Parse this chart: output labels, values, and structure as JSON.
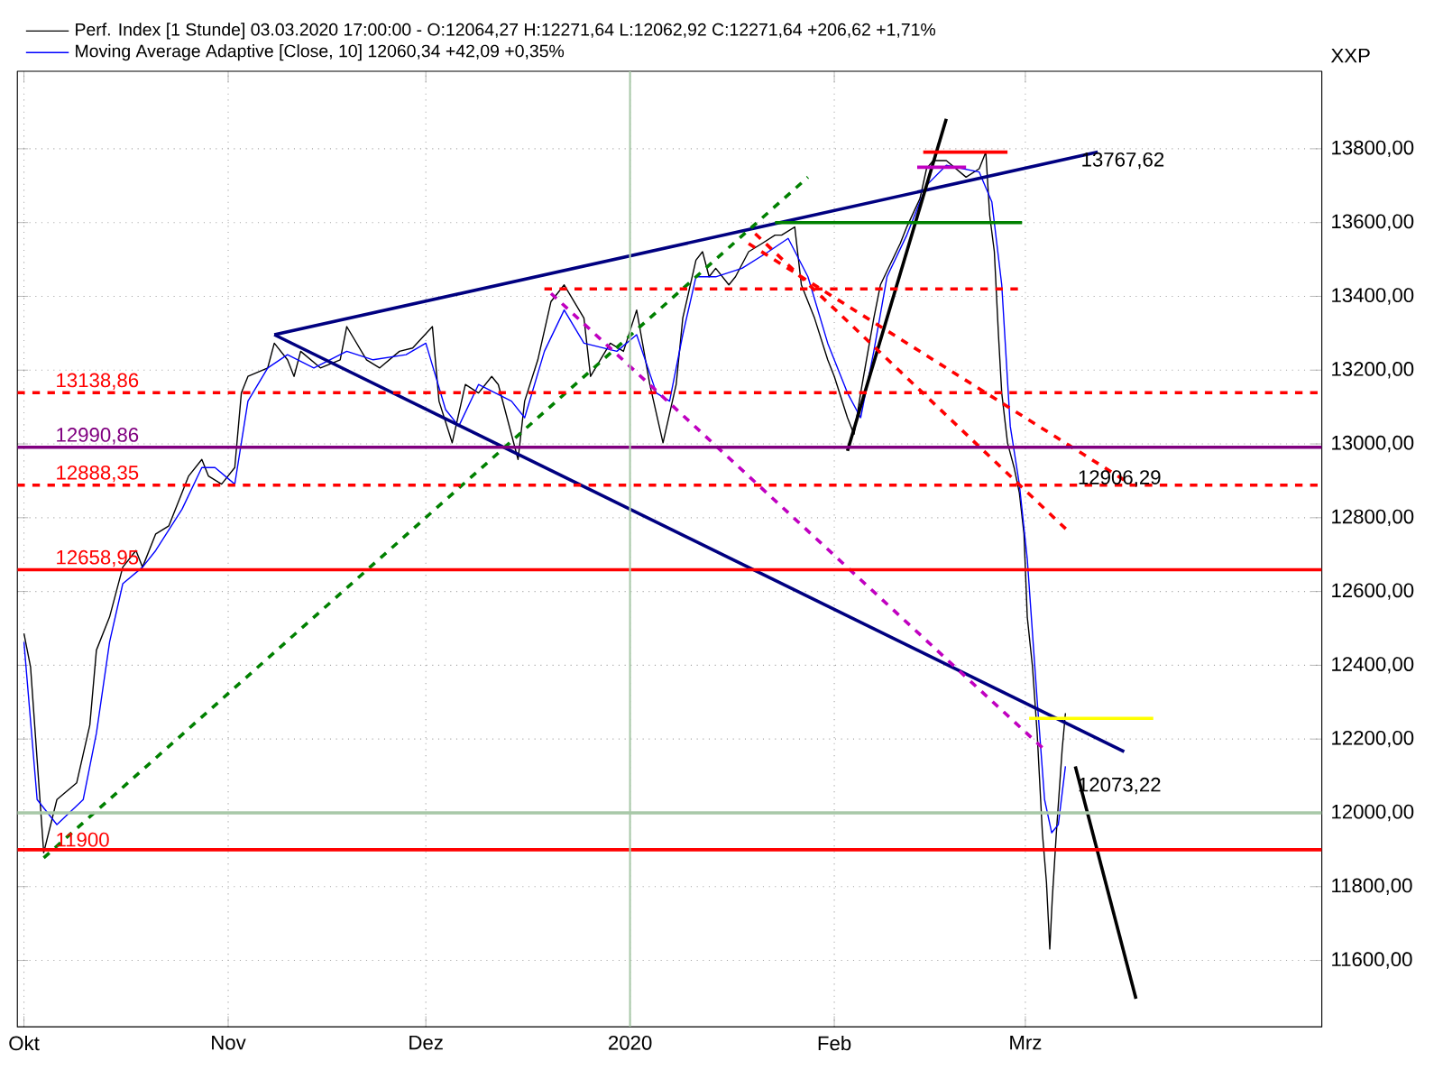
{
  "chart_data": {
    "type": "line",
    "ylabel": "XXP",
    "xlim": [
      "2019-09-30",
      "2020-04-15"
    ],
    "ylim": [
      11420,
      14010
    ],
    "grid": true,
    "legend": "top left",
    "marker": "none",
    "xticks": [
      {
        "value": "2019-10-01",
        "label": "Okt"
      },
      {
        "value": "2019-11-01",
        "label": "Nov"
      },
      {
        "value": "2019-12-01",
        "label": "Dez"
      },
      {
        "value": "2020-01-01",
        "label": "2020"
      },
      {
        "value": "2020-02-01",
        "label": "Feb"
      },
      {
        "value": "2020-03-01",
        "label": "Mrz"
      }
    ],
    "yticks": [
      {
        "value": 11600,
        "label": "11600,00"
      },
      {
        "value": 11800,
        "label": "11800,00"
      },
      {
        "value": 12000,
        "label": "12000,00"
      },
      {
        "value": 12200,
        "label": "12200,00"
      },
      {
        "value": 12400,
        "label": "12400,00"
      },
      {
        "value": 12600,
        "label": "12600,00"
      },
      {
        "value": 12800,
        "label": "12800,00"
      },
      {
        "value": 13000,
        "label": "13000,00"
      },
      {
        "value": 13200,
        "label": "13200,00"
      },
      {
        "value": 13400,
        "label": "13400,00"
      },
      {
        "value": 13600,
        "label": "13600,00"
      },
      {
        "value": 13800,
        "label": "13800,00"
      }
    ],
    "series": [
      {
        "name": "Perf. Index [1 Stunde] 03.03.2020 17:00:00 - O:12064,27 H:12271,64 L:12062,92 C:12271,64 +206,62 +1,71%",
        "color": "#000000",
        "x": [
          "2019-10-01",
          "2019-10-02",
          "2019-10-04",
          "2019-10-06",
          "2019-10-09",
          "2019-10-11",
          "2019-10-12",
          "2019-10-14",
          "2019-10-16",
          "2019-10-18",
          "2019-10-19",
          "2019-10-21",
          "2019-10-23",
          "2019-10-25",
          "2019-10-26",
          "2019-10-28",
          "2019-10-29",
          "2019-10-31",
          "2019-11-02",
          "2019-11-03",
          "2019-11-04",
          "2019-11-07",
          "2019-11-08",
          "2019-11-10",
          "2019-11-11",
          "2019-11-12",
          "2019-11-15",
          "2019-11-18",
          "2019-11-19",
          "2019-11-22",
          "2019-11-24",
          "2019-11-27",
          "2019-11-29",
          "2019-12-02",
          "2019-12-03",
          "2019-12-05",
          "2019-12-07",
          "2019-12-09",
          "2019-12-11",
          "2019-12-12",
          "2019-12-15",
          "2019-12-16",
          "2019-12-18",
          "2019-12-20",
          "2019-12-22",
          "2019-12-25",
          "2019-12-26",
          "2019-12-29",
          "2019-12-31",
          "2020-01-02",
          "2020-01-04",
          "2020-01-06",
          "2020-01-08",
          "2020-01-09",
          "2020-01-11",
          "2020-01-12",
          "2020-01-13",
          "2020-01-14",
          "2020-01-16",
          "2020-01-17",
          "2020-01-19",
          "2020-01-21",
          "2020-01-23",
          "2020-01-24",
          "2020-01-26",
          "2020-01-27",
          "2020-01-29",
          "2020-01-31",
          "2020-02-01",
          "2020-02-03",
          "2020-02-04",
          "2020-02-05",
          "2020-02-07",
          "2020-02-08",
          "2020-02-11",
          "2020-02-12",
          "2020-02-14",
          "2020-02-15",
          "2020-02-16",
          "2020-02-18",
          "2020-02-21",
          "2020-02-23",
          "2020-02-24",
          "2020-02-24T14:00",
          "2020-02-25T07:00",
          "2020-02-25T22:00",
          "2020-02-26T10:00",
          "2020-02-27T07:00",
          "2020-02-28T07:00",
          "2020-02-29T02:00",
          "2020-02-29T19:00",
          "2020-03-01T07:00",
          "2020-03-02T02:00",
          "2020-03-02T19:00",
          "2020-03-03T14:00",
          "2020-03-04T05:00",
          "2020-03-04T17:00",
          "2020-03-05T02:00",
          "2020-03-05T17:00",
          "2020-03-06T14:00",
          "2020-03-07T02:00"
        ],
        "values": [
          12486,
          12396,
          11892,
          12036,
          12081,
          12238,
          12441,
          12531,
          12666,
          12711,
          12666,
          12756,
          12778,
          12868,
          12913,
          12958,
          12913,
          12891,
          12936,
          13138,
          13183,
          13206,
          13273,
          13228,
          13183,
          13251,
          13206,
          13228,
          13318,
          13228,
          13206,
          13251,
          13260,
          13318,
          13116,
          13003,
          13161,
          13138,
          13183,
          13161,
          12958,
          13116,
          13228,
          13386,
          13431,
          13341,
          13183,
          13273,
          13251,
          13363,
          13161,
          13003,
          13161,
          13341,
          13498,
          13521,
          13453,
          13476,
          13431,
          13453,
          13521,
          13543,
          13566,
          13566,
          13588,
          13431,
          13341,
          13228,
          13183,
          13071,
          13026,
          13138,
          13341,
          13431,
          13543,
          13588,
          13665,
          13746,
          13768,
          13768,
          13723,
          13746,
          13791,
          13620,
          13521,
          13296,
          13138,
          13003,
          12936,
          12868,
          12756,
          12531,
          12396,
          12216,
          11946,
          11811,
          11631,
          11766,
          11946,
          12171,
          12270
        ]
      },
      {
        "name": "Moving Average Adaptive [Close, 10] 12060,34 +42,09 +0,35%",
        "color": "#0000ff",
        "x": [
          "2019-10-01",
          "2019-10-03",
          "2019-10-06",
          "2019-10-10",
          "2019-10-12",
          "2019-10-14",
          "2019-10-16",
          "2019-10-19",
          "2019-10-21",
          "2019-10-25",
          "2019-10-28",
          "2019-10-30",
          "2019-11-02",
          "2019-11-04",
          "2019-11-07",
          "2019-11-10",
          "2019-11-14",
          "2019-11-19",
          "2019-11-23",
          "2019-11-28",
          "2019-12-01",
          "2019-12-04",
          "2019-12-06",
          "2019-12-09",
          "2019-12-14",
          "2019-12-16",
          "2019-12-19",
          "2019-12-22",
          "2019-12-25",
          "2019-12-30",
          "2020-01-02",
          "2020-01-05",
          "2020-01-07",
          "2020-01-09",
          "2020-01-11",
          "2020-01-14",
          "2020-01-18",
          "2020-01-22",
          "2020-01-25",
          "2020-01-28",
          "2020-01-31",
          "2020-02-03",
          "2020-02-05",
          "2020-02-07",
          "2020-02-09",
          "2020-02-12",
          "2020-02-15",
          "2020-02-18",
          "2020-02-23",
          "2020-02-24T22:00",
          "2020-02-26T10:00",
          "2020-02-27T17:00",
          "2020-02-29T02:00",
          "2020-03-01T07:00",
          "2020-03-02T19:00",
          "2020-03-03T22:00",
          "2020-03-05T00:00",
          "2020-03-06T00:00",
          "2020-03-07T02:00"
        ],
        "values": [
          12463,
          12036,
          11968,
          12036,
          12216,
          12463,
          12621,
          12666,
          12711,
          12823,
          12936,
          12936,
          12891,
          13116,
          13206,
          13242,
          13206,
          13251,
          13228,
          13242,
          13273,
          13093,
          13048,
          13161,
          13116,
          13071,
          13251,
          13363,
          13273,
          13251,
          13296,
          13138,
          13116,
          13296,
          13453,
          13453,
          13476,
          13521,
          13557,
          13453,
          13273,
          13138,
          13071,
          13251,
          13453,
          13566,
          13701,
          13755,
          13737,
          13656,
          13431,
          13048,
          12891,
          12688,
          12306,
          12036,
          11946,
          11968,
          12126
        ]
      },
      {
        "color": "#000080",
        "x": [
          "2019-11-08",
          "2020-03-12"
        ],
        "values": [
          13296,
          13791
        ]
      },
      {
        "color": "#000080",
        "x": [
          "2019-11-08",
          "2020-03-16"
        ],
        "values": [
          13296,
          12166
        ]
      },
      {
        "color": "#000000",
        "x": [
          "2020-02-03",
          "2020-02-18"
        ],
        "values": [
          12981,
          13881
        ]
      },
      {
        "color": "#000000",
        "x": [
          "2020-03-08T14:00",
          "2020-03-17T19:00"
        ],
        "values": [
          12126,
          11496
        ]
      },
      {
        "color": "#ff0000",
        "line_style": "dashed",
        "x": [
          "2020-01-19",
          "2020-03-17"
        ],
        "values": [
          13543,
          12891
        ]
      },
      {
        "color": "#ff0000",
        "line_style": "dashed",
        "x": [
          "2020-01-20",
          "2020-03-07T10:00"
        ],
        "values": [
          13570,
          12765
        ]
      },
      {
        "color": "#c000c0",
        "line_style": "dashed",
        "x": [
          "2019-12-20",
          "2020-03-03T22:00"
        ],
        "values": [
          13408,
          12171
        ]
      },
      {
        "color": "#008000",
        "line_style": "dashed",
        "x": [
          "2019-10-04",
          "2020-01-28"
        ],
        "values": [
          11878,
          13723
        ]
      },
      {
        "color": "#ff0000",
        "x": [
          "2020-02-14T12:00",
          "2020-02-27T07:00"
        ],
        "values": [
          13791,
          13791
        ]
      },
      {
        "color": "#008000",
        "x": [
          "2020-01-23",
          "2020-02-29T12:00"
        ],
        "values": [
          13600,
          13600
        ]
      },
      {
        "color": "#ff0000",
        "line_style": "dashed",
        "x": [
          "2019-12-19",
          "2020-02-29T12:00"
        ],
        "values": [
          13420,
          13420
        ]
      },
      {
        "color": "#ffff00",
        "x": [
          "2020-03-01T14:00",
          "2020-03-20T10:00"
        ],
        "values": [
          12256,
          12256
        ]
      },
      {
        "color": "#c000c0",
        "x": [
          "2020-02-13T14:00",
          "2020-02-21"
        ],
        "values": [
          13750,
          13750
        ]
      }
    ],
    "ref_lines": [
      {
        "axis": "y",
        "value": 13138.86,
        "label": "13138,86",
        "color": "#ff0000",
        "line_style": "dashed"
      },
      {
        "axis": "y",
        "value": 12990.86,
        "label": "12990,86",
        "color": "#800080"
      },
      {
        "axis": "y",
        "value": 12888.35,
        "label": "12888,35",
        "color": "#ff0000",
        "line_style": "dashed"
      },
      {
        "axis": "y",
        "value": 12658.95,
        "label": "12658,95",
        "color": "#ff0000"
      },
      {
        "axis": "y",
        "value": 11900,
        "label": "11900",
        "color": "#ff0000"
      },
      {
        "axis": "y",
        "value": 12000,
        "color": "#a8c8a8"
      },
      {
        "axis": "x",
        "value": "2020-01-01",
        "color": "#a8c8a8"
      }
    ],
    "annotations": [
      {
        "text": "13767,62",
        "x": "2020-03-07T02:00",
        "y": 13767.62
      },
      {
        "text": "12906,29",
        "x": "2020-03-06T14:00",
        "y": 12906.29
      },
      {
        "text": "12073,22",
        "x": "2020-03-06T14:00",
        "y": 12073.22
      }
    ]
  }
}
